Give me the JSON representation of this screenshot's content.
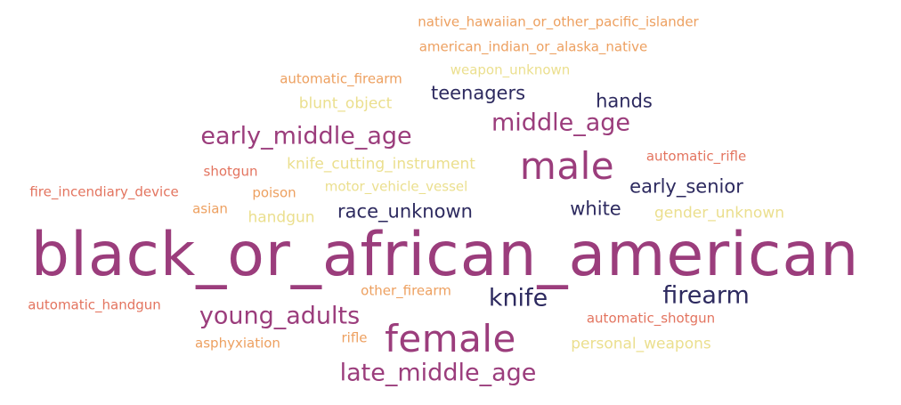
{
  "palette": {
    "navy": "#2d2a5f",
    "magenta": "#9b3d7c",
    "salmon": "#e3745f",
    "orange": "#eda060",
    "yellow": "#ebdf8e"
  },
  "words": [
    {
      "text": "native_hawaiian_or_other_pacific_islander",
      "color": "orange"
    },
    {
      "text": "american_indian_or_alaska_native",
      "color": "orange"
    },
    {
      "text": "weapon_unknown",
      "color": "yellow"
    },
    {
      "text": "automatic_firearm",
      "color": "orange"
    },
    {
      "text": "teenagers",
      "color": "navy"
    },
    {
      "text": "blunt_object",
      "color": "yellow"
    },
    {
      "text": "hands",
      "color": "navy"
    },
    {
      "text": "middle_age",
      "color": "magenta"
    },
    {
      "text": "early_middle_age",
      "color": "magenta"
    },
    {
      "text": "male",
      "color": "magenta"
    },
    {
      "text": "automatic_rifle",
      "color": "salmon"
    },
    {
      "text": "shotgun",
      "color": "salmon"
    },
    {
      "text": "knife_cutting_instrument",
      "color": "yellow"
    },
    {
      "text": "fire_incendiary_device",
      "color": "salmon"
    },
    {
      "text": "poison",
      "color": "orange"
    },
    {
      "text": "motor_vehicle_vessel",
      "color": "yellow"
    },
    {
      "text": "early_senior",
      "color": "navy"
    },
    {
      "text": "asian",
      "color": "orange"
    },
    {
      "text": "handgun",
      "color": "yellow"
    },
    {
      "text": "race_unknown",
      "color": "navy"
    },
    {
      "text": "white",
      "color": "navy"
    },
    {
      "text": "gender_unknown",
      "color": "yellow"
    },
    {
      "text": "black_or_african_american",
      "color": "magenta"
    },
    {
      "text": "other_firearm",
      "color": "orange"
    },
    {
      "text": "knife",
      "color": "navy"
    },
    {
      "text": "firearm",
      "color": "navy"
    },
    {
      "text": "automatic_handgun",
      "color": "salmon"
    },
    {
      "text": "young_adults",
      "color": "magenta"
    },
    {
      "text": "automatic_shotgun",
      "color": "salmon"
    },
    {
      "text": "female",
      "color": "magenta"
    },
    {
      "text": "asphyxiation",
      "color": "orange"
    },
    {
      "text": "rifle",
      "color": "orange"
    },
    {
      "text": "personal_weapons",
      "color": "yellow"
    },
    {
      "text": "late_middle_age",
      "color": "magenta"
    }
  ]
}
